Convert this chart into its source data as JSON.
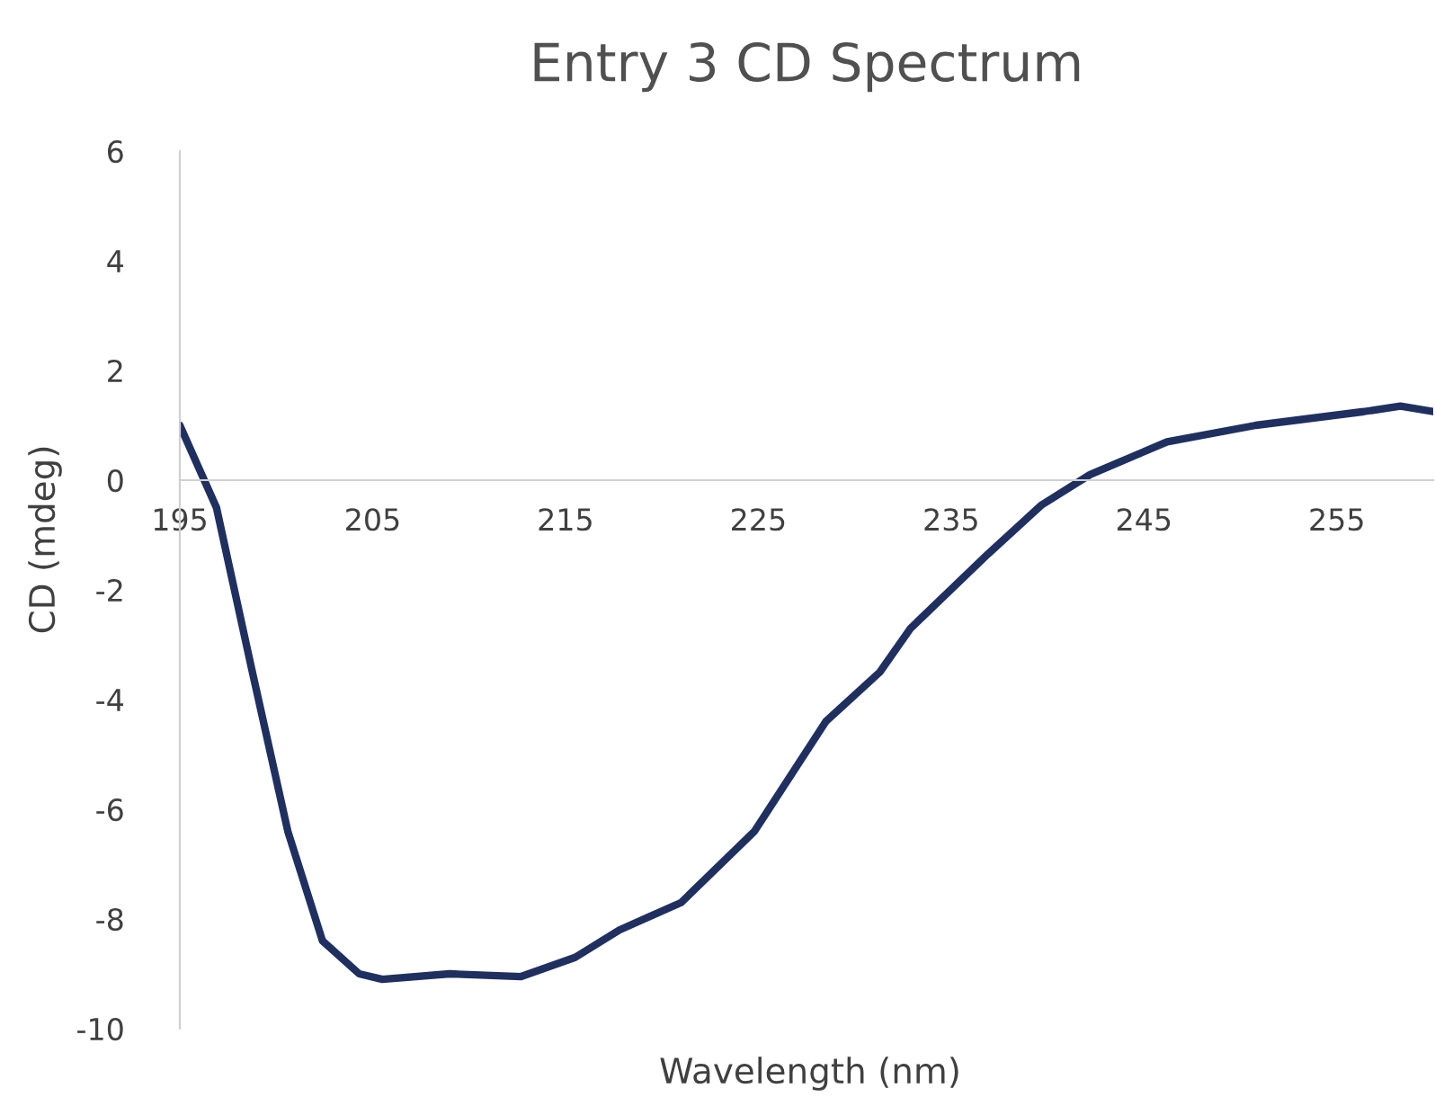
{
  "chart_data": {
    "type": "line",
    "title": "Entry 3 CD Spectrum",
    "xlabel": "Wavelength (nm)",
    "ylabel": "CD (mdeg)",
    "x": [
      195,
      196.9,
      198.7,
      200.6,
      202.4,
      204.3,
      205.5,
      209,
      212.7,
      215.5,
      217.8,
      221,
      224.8,
      228.5,
      231.3,
      232.9,
      236.9,
      239.7,
      242.2,
      246.2,
      250.8,
      256.4,
      258.3,
      260
    ],
    "series": [
      {
        "color": "#1f3060",
        "values": [
          1.0,
          -0.5,
          -3.4,
          -6.4,
          -8.4,
          -9.0,
          -9.1,
          -9.0,
          -9.05,
          -8.7,
          -8.2,
          -7.7,
          -6.4,
          -4.4,
          -3.5,
          -2.7,
          -1.35,
          -0.45,
          0.1,
          0.7,
          1.0,
          1.25,
          1.35,
          1.25
        ]
      }
    ],
    "xlim": [
      195,
      260
    ],
    "xticks": [
      195,
      205,
      215,
      225,
      235,
      245,
      255
    ],
    "ylim": [
      -10,
      6
    ],
    "yticks": [
      -10,
      -8,
      -6,
      -4,
      -2,
      0,
      2,
      4,
      6
    ],
    "grid": false,
    "legend": false,
    "marker": "none",
    "line_style": "solid"
  }
}
